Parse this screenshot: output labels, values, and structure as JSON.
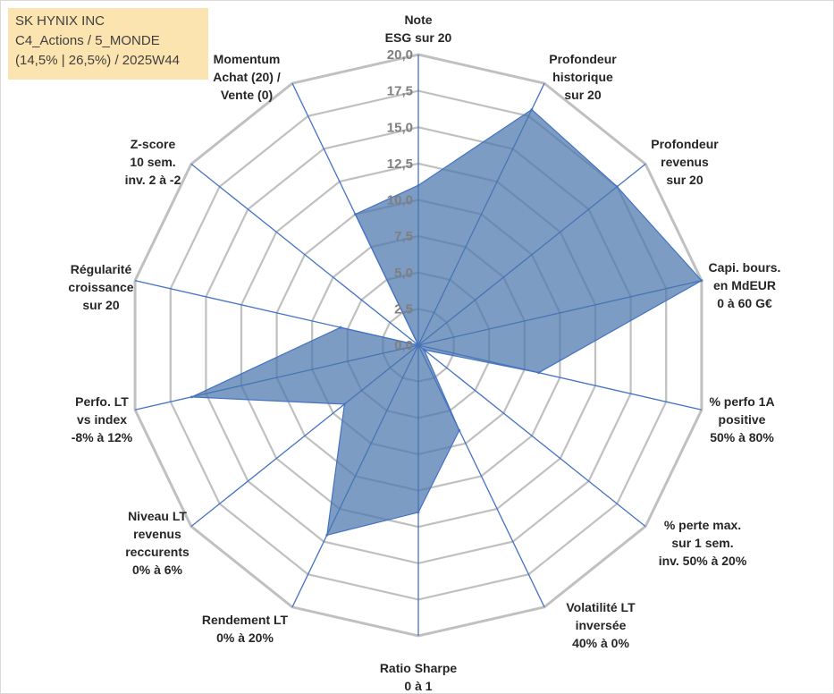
{
  "title_box": {
    "line1": "SK HYNIX INC",
    "line2": "C4_Actions / 5_MONDE",
    "line3": "(14,5% | 26,5%) / 2025W44"
  },
  "colors": {
    "fill": "#4a76ad",
    "series_line": "#4472c4",
    "grid": "#c0c0c0",
    "spoke": "#4472c4",
    "label_text": "#262626",
    "tick_text": "#7f7f7f"
  },
  "chart_data": {
    "type": "radar",
    "title": "",
    "rmin": 0,
    "rmax": 20,
    "rstep": 2.5,
    "tick_labels": [
      "0,0",
      "2,5",
      "5,0",
      "7,5",
      "10,0",
      "12,5",
      "15,0",
      "17,5",
      "20,0"
    ],
    "axes": [
      [
        "Note",
        "ESG sur 20"
      ],
      [
        "Profondeur",
        "historique",
        "sur 20"
      ],
      [
        "Profondeur",
        "revenus",
        "sur 20"
      ],
      [
        "Capi. bours.",
        "en MdEUR",
        "0 à 60 G€"
      ],
      [
        "% perfo 1A",
        "positive",
        "50% à 80%"
      ],
      [
        "% perte max.",
        "sur 1 sem.",
        "inv. 50% à 20%"
      ],
      [
        "Volatilité LT",
        "inversée",
        "40% à 0%"
      ],
      [
        "Ratio Sharpe",
        "0 à 1"
      ],
      [
        "Rendement LT",
        "0% à 20%"
      ],
      [
        "Niveau LT",
        "revenus",
        "reccurents",
        "0% à 6%"
      ],
      [
        "Perfo. LT",
        "vs index",
        "-8% à 12%"
      ],
      [
        "Régularité",
        "croissance",
        "sur 20"
      ],
      [
        "Z-score",
        "10 sem.",
        "inv. 2 à -2"
      ],
      [
        "Momentum",
        "Achat (20) /",
        "Vente (0)"
      ]
    ],
    "series": [
      {
        "values": [
          11,
          18,
          17.5,
          20,
          8.5,
          0.5,
          6.5,
          11.5,
          14.5,
          6.5,
          16,
          5.5,
          0,
          10
        ]
      }
    ],
    "grid": true,
    "legend": "none"
  }
}
